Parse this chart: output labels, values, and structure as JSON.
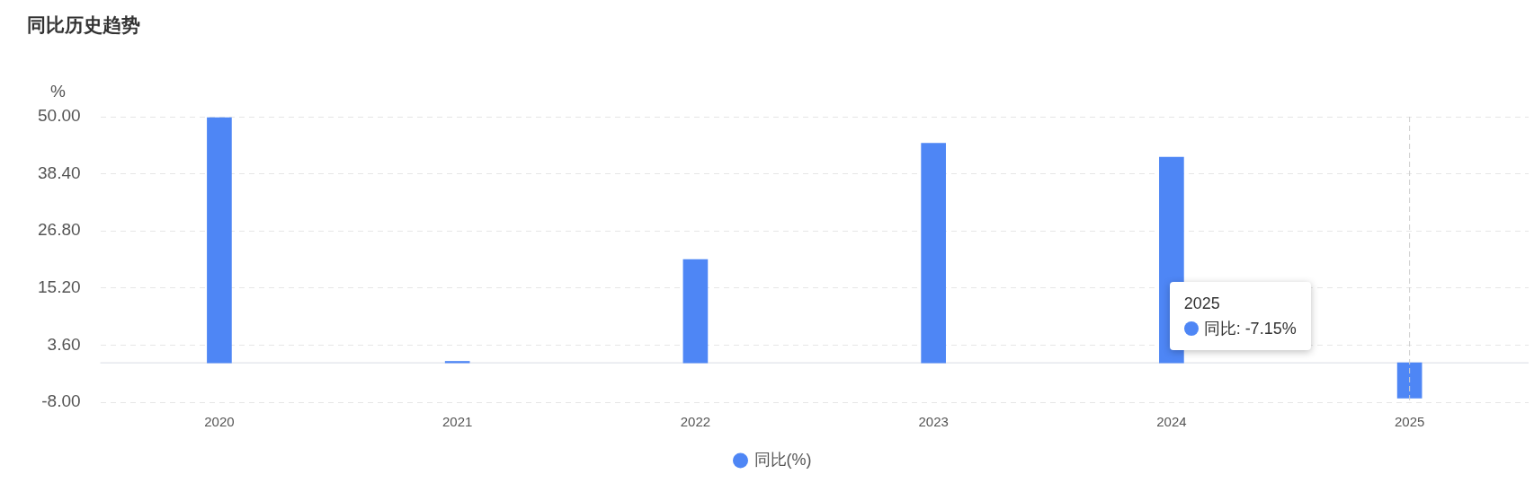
{
  "chart_data": {
    "type": "bar",
    "title": "同比历史趋势",
    "ylabel": "%",
    "categories": [
      "2020",
      "2021",
      "2022",
      "2023",
      "2024",
      "2025"
    ],
    "series": [
      {
        "name": "同比(%)",
        "color": "#4e86f5",
        "values": [
          49.8,
          0.3,
          21.0,
          44.6,
          41.8,
          -7.15
        ]
      }
    ],
    "ylim": [
      -8,
      50
    ],
    "yticks": [
      {
        "value": -8,
        "label": "-8.00"
      },
      {
        "value": 3.6,
        "label": "3.60"
      },
      {
        "value": 15.2,
        "label": "15.20"
      },
      {
        "value": 26.8,
        "label": "26.80"
      },
      {
        "value": 38.4,
        "label": "38.40"
      },
      {
        "value": 50,
        "label": "50.00"
      }
    ],
    "grid": "y",
    "legend": "bottom",
    "ref_lines": [
      {
        "axis": "x",
        "value": "2025",
        "color": "#cccccc",
        "line_style": "dashed"
      }
    ],
    "annotations": [
      "2025",
      "同比: -7.15%"
    ]
  }
}
